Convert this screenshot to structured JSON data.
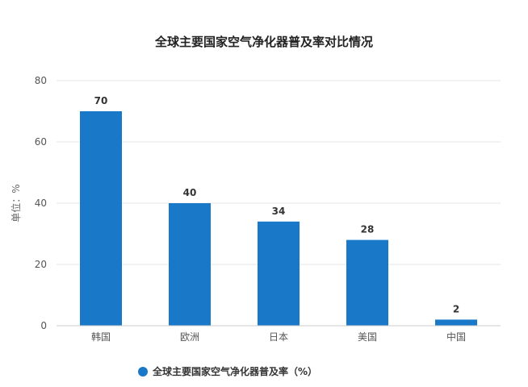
{
  "chart_data": {
    "type": "bar",
    "title": "全球主要国家空气净化器普及率对比情况",
    "ylabel": "单位：%",
    "xlabel": "",
    "categories": [
      "韩国",
      "欧洲",
      "日本",
      "美国",
      "中国"
    ],
    "series": [
      {
        "name": "全球主要国家空气净化器普及率（%）",
        "values": [
          70,
          40,
          34,
          28,
          2
        ]
      }
    ],
    "ylim": [
      0,
      80
    ],
    "yticks": [
      0,
      20,
      40,
      60,
      80
    ],
    "grid": true,
    "legend_position": "bottom",
    "colors": {
      "bar": "#1a78c9",
      "grid": "#e6e6e6"
    }
  }
}
